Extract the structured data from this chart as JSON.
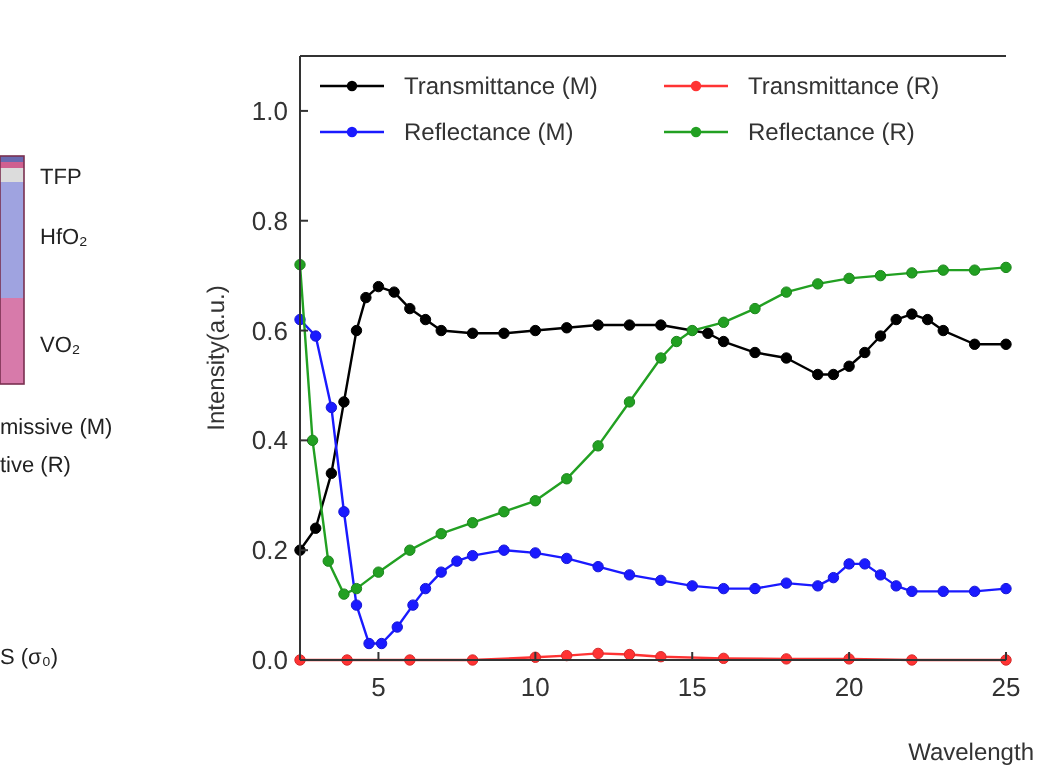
{
  "chart_data": [
    {
      "type": "other",
      "annotations": [
        "TFP",
        "HfO₂",
        "VO₂",
        "missive (M)",
        "tive (R)",
        "S (σ₀)"
      ]
    },
    {
      "type": "line",
      "xlabel": "Wavelength",
      "ylabel": "Intensity(a.u.)",
      "xlim": [
        2.5,
        25
      ],
      "ylim": [
        0,
        1.1
      ],
      "xticks": [
        5,
        10,
        15,
        20,
        25
      ],
      "yticks": [
        {
          "value": 0,
          "label": "0.0"
        },
        {
          "value": 0.2,
          "label": "0.2"
        },
        {
          "value": 0.4,
          "label": "0.4"
        },
        {
          "value": 0.6,
          "label": "0.6"
        },
        {
          "value": 0.8,
          "label": "0.8"
        },
        {
          "value": 1,
          "label": "1.0"
        }
      ],
      "grid": false,
      "legend": "top",
      "marker": "circle",
      "line_style": "solid",
      "series": [
        {
          "name": "Transmittance (M)",
          "color": "#000000",
          "x": [
            2.5,
            3,
            3.5,
            3.9,
            4.3,
            4.6,
            5,
            5.5,
            6,
            6.5,
            7,
            8,
            9,
            10,
            11,
            12,
            13,
            14,
            15.5,
            16,
            17,
            18,
            19,
            19.5,
            20,
            20.5,
            21,
            21.5,
            22,
            22.5,
            23,
            24,
            25
          ],
          "values": [
            0.2,
            0.24,
            0.34,
            0.47,
            0.6,
            0.66,
            0.68,
            0.67,
            0.64,
            0.62,
            0.6,
            0.595,
            0.595,
            0.6,
            0.605,
            0.61,
            0.61,
            0.61,
            0.595,
            0.58,
            0.56,
            0.55,
            0.52,
            0.52,
            0.535,
            0.56,
            0.59,
            0.62,
            0.63,
            0.62,
            0.6,
            0.575,
            0.575
          ]
        },
        {
          "name": "Transmittance (R)",
          "color": "#ff3333",
          "x": [
            2.5,
            4,
            6,
            8,
            10,
            11,
            12,
            13,
            14,
            16,
            18,
            20,
            22,
            25
          ],
          "values": [
            0,
            0,
            0,
            0,
            0.005,
            0.008,
            0.012,
            0.01,
            0.006,
            0.003,
            0.002,
            0.002,
            0,
            0
          ]
        },
        {
          "name": "Reflectance (M)",
          "color": "#1a1aff",
          "x": [
            2.5,
            3,
            3.5,
            3.9,
            4.3,
            4.7,
            5.1,
            5.6,
            6.1,
            6.5,
            7,
            7.5,
            8,
            9,
            10,
            11,
            12,
            13,
            14,
            15,
            16,
            17,
            18,
            19,
            19.5,
            20,
            20.5,
            21,
            21.5,
            22,
            23,
            24,
            25
          ],
          "values": [
            0.62,
            0.59,
            0.46,
            0.27,
            0.1,
            0.03,
            0.03,
            0.06,
            0.1,
            0.13,
            0.16,
            0.18,
            0.19,
            0.2,
            0.195,
            0.185,
            0.17,
            0.155,
            0.145,
            0.135,
            0.13,
            0.13,
            0.14,
            0.135,
            0.15,
            0.175,
            0.175,
            0.155,
            0.135,
            0.125,
            0.125,
            0.125,
            0.13
          ]
        },
        {
          "name": "Reflectance (R)",
          "color": "#22a022",
          "x": [
            2.5,
            2.9,
            3.4,
            3.9,
            4.3,
            5,
            6,
            7,
            8,
            9,
            10,
            11,
            12,
            13,
            14,
            14.5,
            15,
            16,
            17,
            18,
            19,
            20,
            21,
            22,
            23,
            24,
            25
          ],
          "values": [
            0.72,
            0.4,
            0.18,
            0.12,
            0.13,
            0.16,
            0.2,
            0.23,
            0.25,
            0.27,
            0.29,
            0.33,
            0.39,
            0.47,
            0.55,
            0.58,
            0.6,
            0.615,
            0.64,
            0.67,
            0.685,
            0.695,
            0.7,
            0.705,
            0.71,
            0.71,
            0.715
          ]
        }
      ]
    }
  ]
}
